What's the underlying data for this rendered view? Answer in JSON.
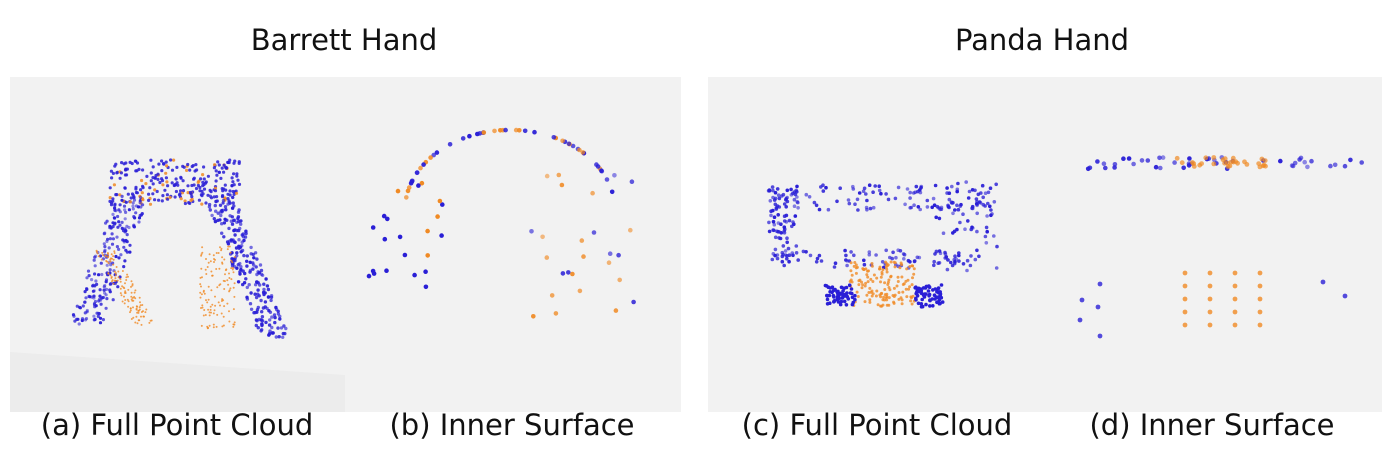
{
  "titles": [
    "Barrett Hand",
    "Panda Hand"
  ],
  "captions": [
    "(a) Full Point Cloud",
    "(b) Inner Surface",
    "(c) Full Point Cloud",
    "(d) Inner Surface"
  ]
}
